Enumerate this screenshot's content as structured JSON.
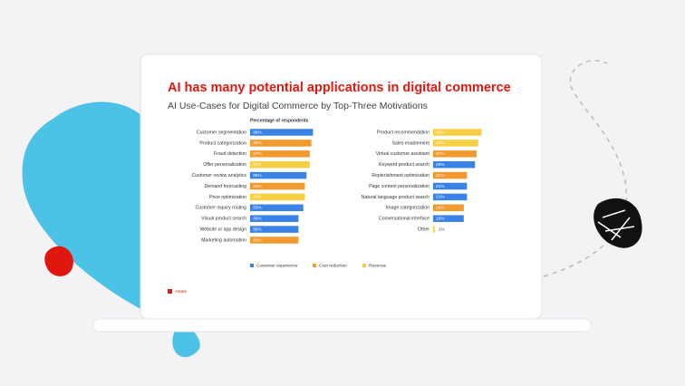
{
  "title": "AI has many potential applications in digital commerce",
  "subtitle": "AI Use-Cases for Digital Commerce by Top-Three Motivations",
  "axis_label": "Percentage of respondents",
  "legend": [
    {
      "name": "Customer experience",
      "color": "#3b82e6"
    },
    {
      "name": "Cost reduction",
      "color": "#f29a2e"
    },
    {
      "name": "Revenue",
      "color": "#f7cf45"
    }
  ],
  "footer_brand": "Adobe",
  "chart_data": [
    {
      "type": "hbar",
      "categories": [
        "Customer segmentation",
        "Product categorization",
        "Fraud detection",
        "Offer personalization",
        "Customer review analytics",
        "Demand forecasting",
        "Price optimization",
        "Customer inquiry routing",
        "Visual product search",
        "Website or app design",
        "Marketing automation"
      ],
      "values": [
        39,
        38,
        37,
        37,
        35,
        34,
        34,
        33,
        30,
        30,
        30
      ],
      "value_labels": [
        "39%",
        "38%",
        "37%",
        "37%",
        "35%",
        "34%",
        "34%",
        "33%",
        "30%",
        "30%",
        "30%"
      ],
      "colors": [
        "#3b82e6",
        "#f29a2e",
        "#f29a2e",
        "#f7cf45",
        "#3b82e6",
        "#f29a2e",
        "#f7cf45",
        "#3b82e6",
        "#3b82e6",
        "#3b82e6",
        "#f29a2e"
      ]
    },
    {
      "type": "hbar",
      "categories": [
        "Product recommendation",
        "Sales enablement",
        "Virtual customer assistant",
        "Keyword product search",
        "Replenishment optimization",
        "Page content personalization",
        "Natural language product search",
        "Image categorization",
        "Conversational interface",
        "Other"
      ],
      "values": [
        30,
        28,
        27,
        26,
        21,
        21,
        21,
        19,
        19,
        1
      ],
      "value_labels": [
        "30%",
        "28%",
        "27%",
        "26%",
        "21%",
        "21%",
        "21%",
        "19%",
        "19%",
        "1%"
      ],
      "colors": [
        "#f7cf45",
        "#f7cf45",
        "#f29a2e",
        "#3b82e6",
        "#f29a2e",
        "#3b82e6",
        "#3b82e6",
        "#f29a2e",
        "#3b82e6",
        "#f7cf45"
      ]
    }
  ]
}
